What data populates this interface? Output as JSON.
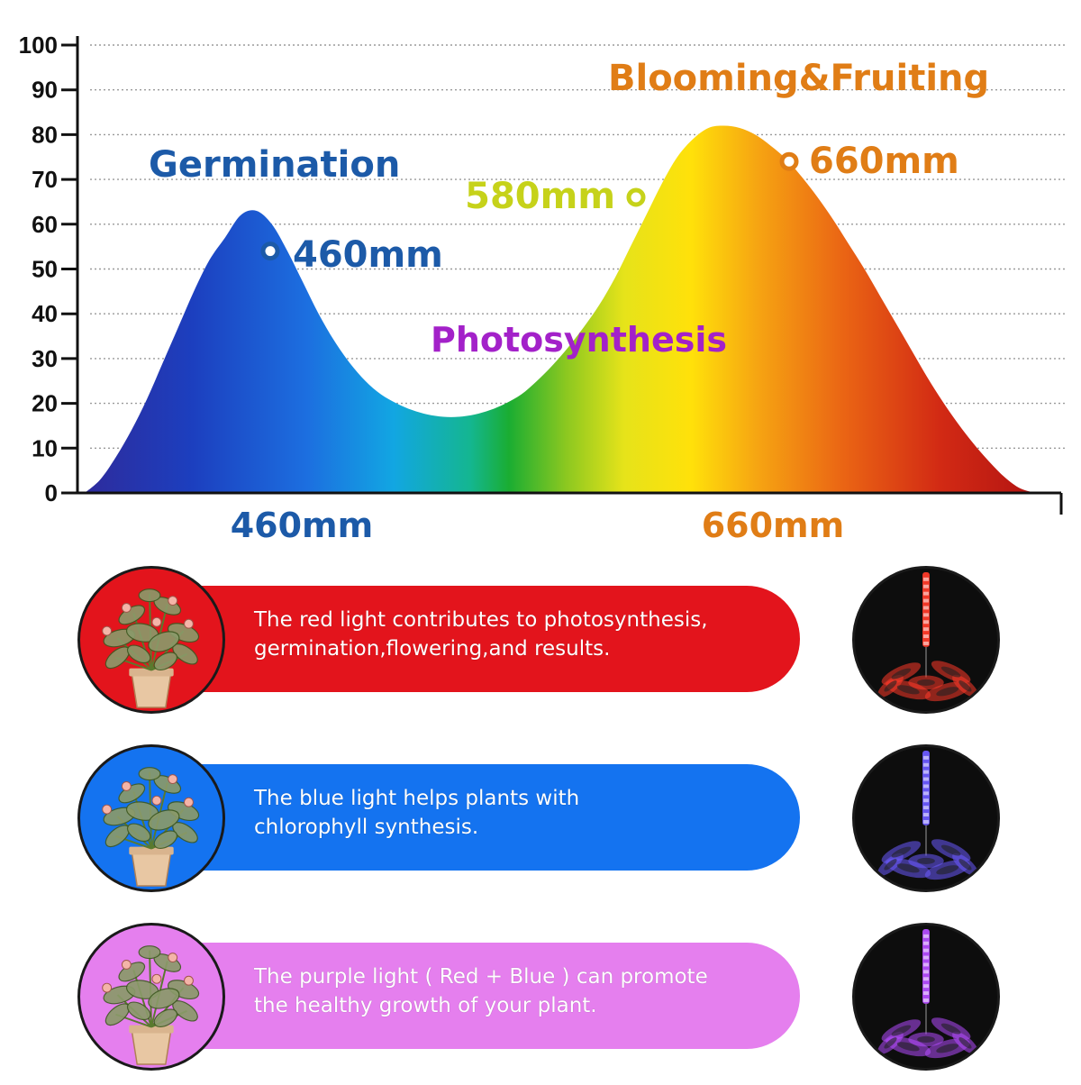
{
  "chart_data": {
    "type": "area",
    "title": "",
    "xlabel": "",
    "ylabel": "",
    "ylim": [
      0,
      100
    ],
    "yticks": [
      0,
      10,
      20,
      30,
      40,
      50,
      60,
      70,
      80,
      90,
      100
    ],
    "grid": true,
    "xtick_labels": [
      {
        "label": "460mm",
        "color": "#1c5aa8"
      },
      {
        "label": "660mm",
        "color": "#e07d16"
      }
    ],
    "series": [
      {
        "values": [
          0,
          3,
          8,
          14,
          21,
          29,
          37,
          45,
          52,
          57,
          62,
          63,
          60,
          54,
          47,
          40,
          34,
          29,
          25,
          22,
          20,
          18.5,
          17.5,
          17,
          17,
          17.5,
          18.5,
          20,
          22,
          25,
          28.5,
          32.5,
          37,
          42,
          48,
          55,
          62,
          69,
          75,
          79,
          81.5,
          82,
          81.5,
          80,
          77.5,
          74.5,
          70.5,
          66,
          61,
          55.5,
          50,
          44,
          38,
          32,
          26,
          20.5,
          15.5,
          11,
          7,
          3.5,
          1,
          0
        ]
      }
    ],
    "annotations": [
      {
        "text": "Germination",
        "color": "#1c5aa8"
      },
      {
        "text": "460mm",
        "color": "#1c5aa8",
        "y": 54
      },
      {
        "text": "Blooming&Fruiting",
        "color": "#e07d16"
      },
      {
        "text": "580mm",
        "color": "#c6d21a",
        "y": 66
      },
      {
        "text": "660mm",
        "color": "#e07d16",
        "y": 74
      },
      {
        "text": "Photosynthesis",
        "color": "#a321c9"
      }
    ]
  },
  "rows": [
    {
      "text_line1": "The red light contributes to photosynthesis,",
      "text_line2": "germination,flowering,and results.",
      "color": "#e3141c",
      "lamp_color": "#ff3b2a"
    },
    {
      "text_line1": "The blue light helps plants with",
      "text_line2": "chlorophyll synthesis.",
      "color": "#1473f0",
      "lamp_color": "#6b5bff"
    },
    {
      "text_line1": "The purple light ( Red + Blue ) can promote",
      "text_line2": "the healthy growth of your plant.",
      "color": "#e57fee",
      "lamp_color": "#b44dff"
    }
  ]
}
